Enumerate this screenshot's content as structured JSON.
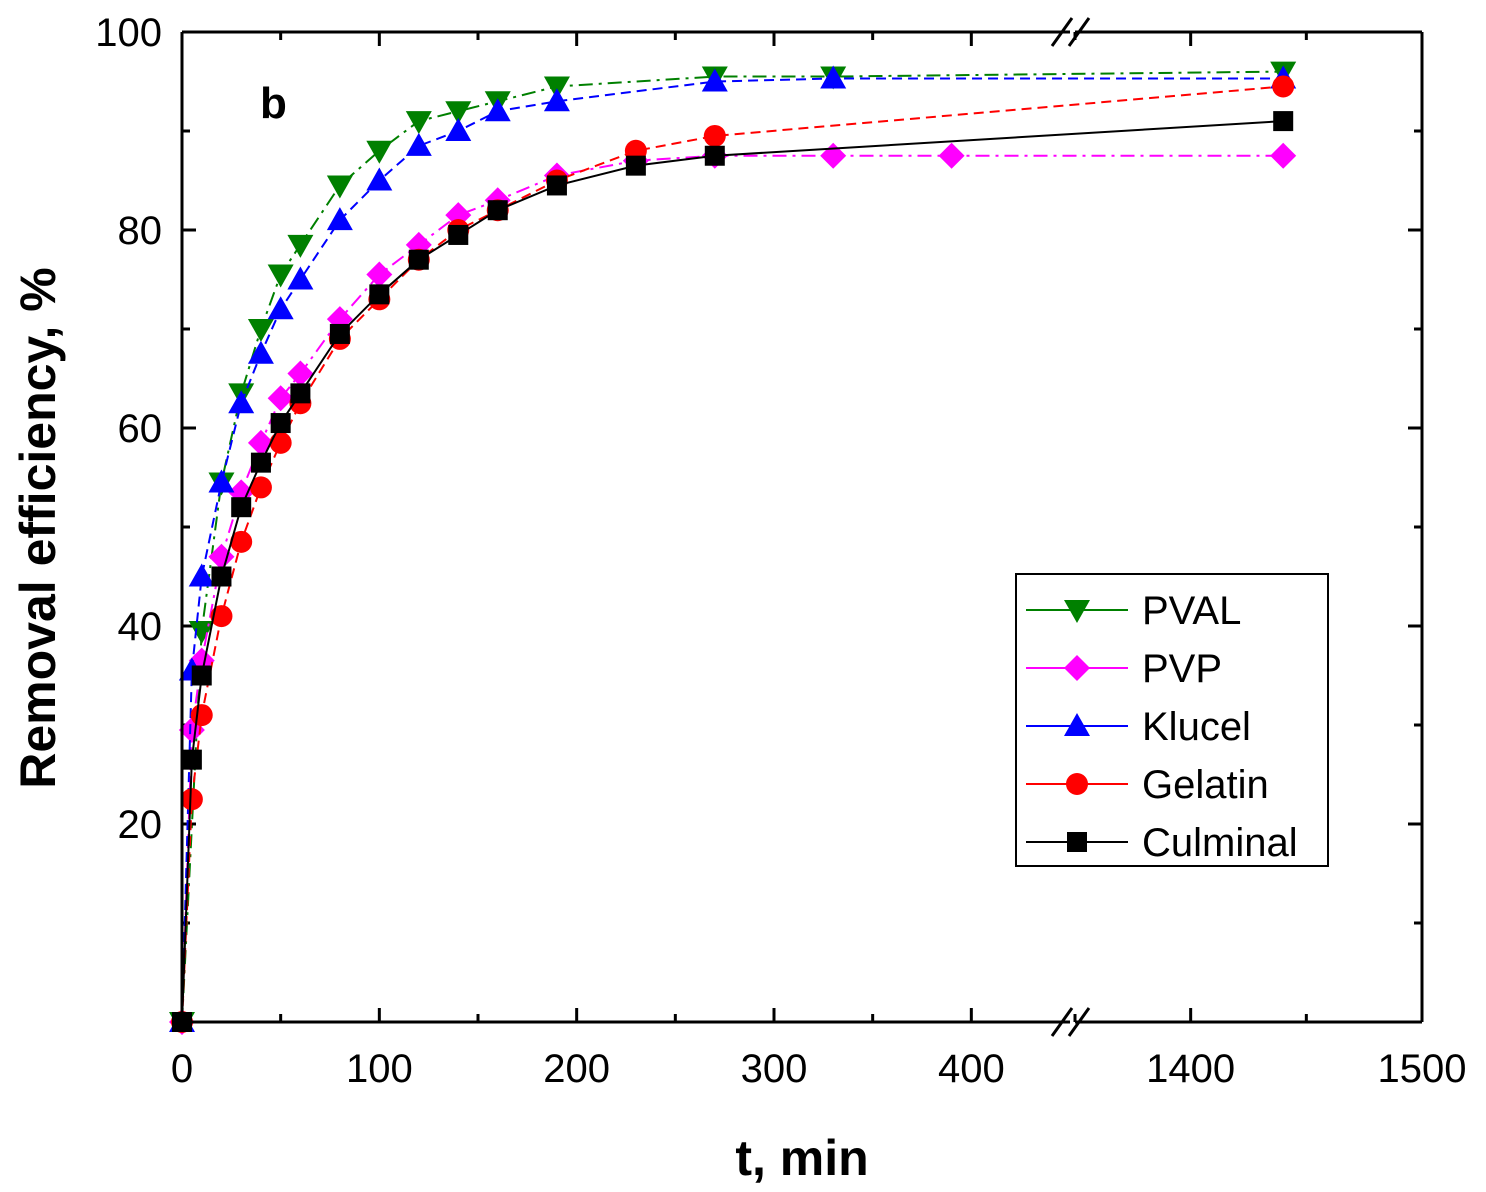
{
  "chart_data": {
    "type": "line",
    "panel_label": "b",
    "xlabel": "t, min",
    "ylabel": "Removal efficiency, %",
    "xlim": [
      0,
      1500
    ],
    "ylim": [
      0,
      100
    ],
    "x_axis_break": {
      "from": 450,
      "to": 1350
    },
    "x_ticks": [
      {
        "value": 0,
        "label": "0"
      },
      {
        "value": 100,
        "label": "100"
      },
      {
        "value": 200,
        "label": "200"
      },
      {
        "value": 300,
        "label": "300"
      },
      {
        "value": 400,
        "label": "400"
      },
      {
        "value": 1400,
        "label": "1400"
      },
      {
        "value": 1500,
        "label": "1500"
      }
    ],
    "y_ticks": [
      {
        "value": 20,
        "label": "20"
      },
      {
        "value": 40,
        "label": "40"
      },
      {
        "value": 60,
        "label": "60"
      },
      {
        "value": 80,
        "label": "80"
      },
      {
        "value": 100,
        "label": "100"
      }
    ],
    "legend_position": "right, lower-middle",
    "series": [
      {
        "name": "PVAL",
        "color": "#008000",
        "marker": "triangle-down",
        "dash": "dashdot",
        "x": [
          0,
          10,
          20,
          30,
          40,
          50,
          60,
          80,
          100,
          120,
          140,
          160,
          190,
          270,
          330,
          1440
        ],
        "y": [
          0,
          39.5,
          54.5,
          63.5,
          70,
          75.5,
          78.5,
          84.5,
          88,
          91,
          92,
          93,
          94.5,
          95.5,
          95.5,
          96
        ]
      },
      {
        "name": "PVP",
        "color": "#ff00ff",
        "marker": "diamond",
        "dash": "dashdot",
        "x": [
          0,
          5,
          10,
          20,
          30,
          40,
          50,
          60,
          80,
          100,
          120,
          140,
          160,
          190,
          230,
          270,
          330,
          390,
          1440
        ],
        "y": [
          0,
          29.5,
          36.5,
          47,
          53.5,
          58.5,
          63,
          65.5,
          71,
          75.5,
          78.5,
          81.5,
          83,
          85.5,
          87,
          87.5,
          87.5,
          87.5,
          87.5
        ]
      },
      {
        "name": "Klucel",
        "color": "#0000ff",
        "marker": "triangle-up",
        "dash": "dash",
        "x": [
          0,
          5,
          10,
          20,
          30,
          40,
          50,
          60,
          80,
          100,
          120,
          140,
          160,
          190,
          270,
          330,
          1440
        ],
        "y": [
          0,
          35.5,
          45,
          54.5,
          62.5,
          67.5,
          72,
          75,
          81,
          85,
          88.5,
          90,
          92,
          93,
          95,
          95.3,
          95.3
        ]
      },
      {
        "name": "Gelatin",
        "color": "#ff0000",
        "marker": "circle",
        "dash": "dash",
        "x": [
          0,
          5,
          10,
          20,
          30,
          40,
          50,
          60,
          80,
          100,
          120,
          140,
          160,
          190,
          230,
          270,
          1440
        ],
        "y": [
          0,
          22.5,
          31,
          41,
          48.5,
          54,
          58.5,
          62.5,
          69,
          73,
          77,
          80,
          82,
          85,
          88,
          89.5,
          94.5
        ]
      },
      {
        "name": "Culminal",
        "color": "#000000",
        "marker": "square",
        "dash": "solid",
        "x": [
          0,
          5,
          10,
          20,
          30,
          40,
          50,
          60,
          80,
          100,
          120,
          140,
          160,
          190,
          230,
          270,
          1440
        ],
        "y": [
          0,
          26.5,
          35,
          45,
          52,
          56.5,
          60.5,
          63.5,
          69.5,
          73.5,
          77,
          79.5,
          82,
          84.5,
          86.5,
          87.5,
          91
        ]
      }
    ]
  }
}
